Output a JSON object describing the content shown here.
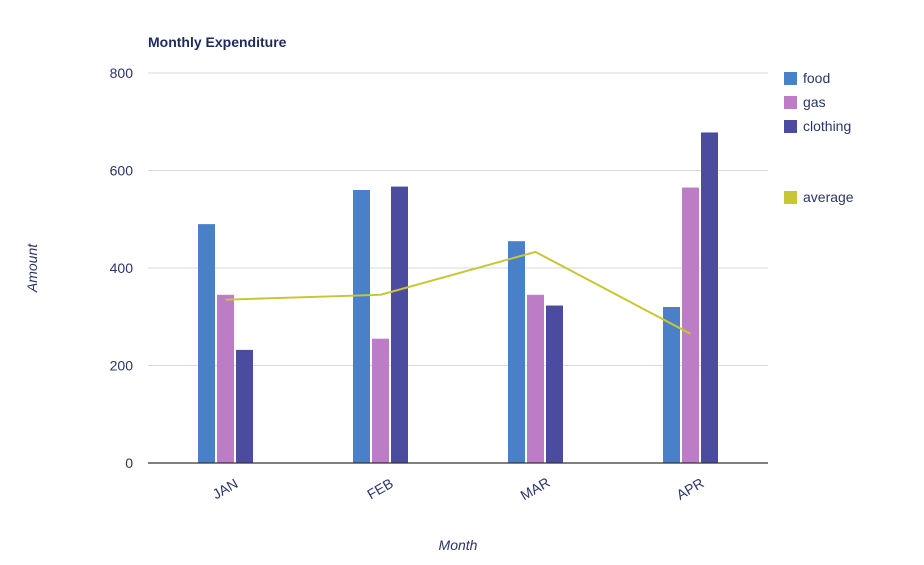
{
  "chart_data": {
    "type": "bar",
    "title": "Monthly Expenditure",
    "xlabel": "Month",
    "ylabel": "Amount",
    "categories": [
      "JAN",
      "FEB",
      "MAR",
      "APR"
    ],
    "ylim": [
      0,
      800
    ],
    "yticks": [
      0,
      200,
      400,
      600,
      800
    ],
    "grid": true,
    "legend_position": "right",
    "series": [
      {
        "name": "food",
        "color": "#4a80c8",
        "values": [
          490,
          560,
          455,
          320
        ]
      },
      {
        "name": "gas",
        "color": "#bd7cc6",
        "values": [
          345,
          255,
          345,
          565
        ]
      },
      {
        "name": "clothing",
        "color": "#4b4ba0",
        "values": [
          232,
          567,
          323,
          678
        ]
      }
    ],
    "line_series": [
      {
        "name": "average",
        "color": "#c7c735",
        "values": [
          335,
          345,
          433,
          265
        ]
      }
    ]
  }
}
